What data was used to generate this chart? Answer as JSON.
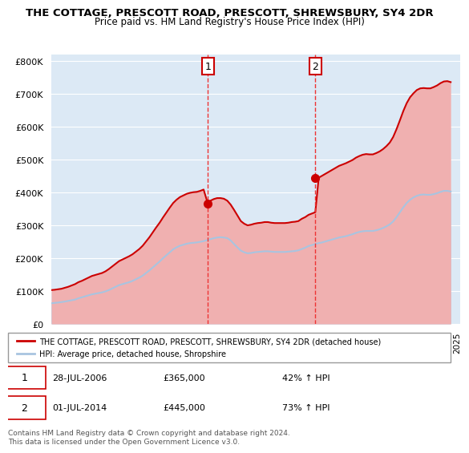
{
  "title": "THE COTTAGE, PRESCOTT ROAD, PRESCOTT, SHREWSBURY, SY4 2DR",
  "subtitle": "Price paid vs. HM Land Registry's House Price Index (HPI)",
  "ylabel_ticks": [
    "£0",
    "£100K",
    "£200K",
    "£300K",
    "£400K",
    "£500K",
    "£600K",
    "£700K",
    "£800K"
  ],
  "ytick_values": [
    0,
    100000,
    200000,
    300000,
    400000,
    500000,
    600000,
    700000,
    800000
  ],
  "ylim": [
    0,
    820000
  ],
  "background_color": "#dce9f5",
  "plot_bg": "#dce9f5",
  "line_color_hpi": "#a8c4e0",
  "line_color_property": "#cc0000",
  "sale1_year": 2006.57,
  "sale1_price": 365000,
  "sale2_year": 2014.5,
  "sale2_price": 445000,
  "vline_color": "#ee3333",
  "legend_label_property": "THE COTTAGE, PRESCOTT ROAD, PRESCOTT, SHREWSBURY, SY4 2DR (detached house)",
  "legend_label_hpi": "HPI: Average price, detached house, Shropshire",
  "annotation1_label": "1",
  "annotation2_label": "2",
  "annotation1_date": "28-JUL-2006",
  "annotation1_price": "£365,000",
  "annotation1_hpi": "42% ↑ HPI",
  "annotation2_date": "01-JUL-2014",
  "annotation2_price": "£445,000",
  "annotation2_hpi": "73% ↑ HPI",
  "footer": "Contains HM Land Registry data © Crown copyright and database right 2024.\nThis data is licensed under the Open Government Licence v3.0.",
  "hpi_years": [
    1995,
    1995.25,
    1995.5,
    1995.75,
    1996,
    1996.25,
    1996.5,
    1996.75,
    1997,
    1997.25,
    1997.5,
    1997.75,
    1998,
    1998.25,
    1998.5,
    1998.75,
    1999,
    1999.25,
    1999.5,
    1999.75,
    2000,
    2000.25,
    2000.5,
    2000.75,
    2001,
    2001.25,
    2001.5,
    2001.75,
    2002,
    2002.25,
    2002.5,
    2002.75,
    2003,
    2003.25,
    2003.5,
    2003.75,
    2004,
    2004.25,
    2004.5,
    2004.75,
    2005,
    2005.25,
    2005.5,
    2005.75,
    2006,
    2006.25,
    2006.5,
    2006.75,
    2007,
    2007.25,
    2007.5,
    2007.75,
    2008,
    2008.25,
    2008.5,
    2008.75,
    2009,
    2009.25,
    2009.5,
    2009.75,
    2010,
    2010.25,
    2010.5,
    2010.75,
    2011,
    2011.25,
    2011.5,
    2011.75,
    2012,
    2012.25,
    2012.5,
    2012.75,
    2013,
    2013.25,
    2013.5,
    2013.75,
    2014,
    2014.25,
    2014.5,
    2014.75,
    2015,
    2015.25,
    2015.5,
    2015.75,
    2016,
    2016.25,
    2016.5,
    2016.75,
    2017,
    2017.25,
    2017.5,
    2017.75,
    2018,
    2018.25,
    2018.5,
    2018.75,
    2019,
    2019.25,
    2019.5,
    2019.75,
    2020,
    2020.25,
    2020.5,
    2020.75,
    2021,
    2021.25,
    2021.5,
    2021.75,
    2022,
    2022.25,
    2022.5,
    2022.75,
    2023,
    2023.25,
    2023.5,
    2023.75,
    2024,
    2024.25,
    2024.5
  ],
  "hpi_values": [
    63000,
    64000,
    65000,
    66500,
    68000,
    70000,
    72000,
    74000,
    78000,
    81000,
    84000,
    87000,
    90000,
    92000,
    94000,
    96000,
    99000,
    103000,
    108000,
    113000,
    118000,
    121000,
    124000,
    127000,
    131000,
    136000,
    141000,
    147000,
    155000,
    163000,
    172000,
    181000,
    190000,
    200000,
    209000,
    218000,
    227000,
    233000,
    238000,
    241000,
    244000,
    246000,
    247000,
    248000,
    250000,
    252000,
    255000,
    258000,
    261000,
    263000,
    264000,
    263000,
    261000,
    254000,
    243000,
    233000,
    223000,
    218000,
    215000,
    216000,
    218000,
    219000,
    220000,
    221000,
    221000,
    220000,
    219000,
    219000,
    219000,
    219000,
    220000,
    221000,
    222000,
    224000,
    228000,
    232000,
    237000,
    240000,
    243000,
    246000,
    248000,
    251000,
    254000,
    257000,
    260000,
    263000,
    265000,
    267000,
    270000,
    273000,
    277000,
    280000,
    282000,
    283000,
    283000,
    283000,
    285000,
    288000,
    292000,
    297000,
    303000,
    312000,
    325000,
    340000,
    355000,
    368000,
    378000,
    385000,
    390000,
    393000,
    394000,
    393000,
    393000,
    395000,
    398000,
    402000,
    405000,
    405000,
    403000
  ],
  "property_years": [
    1995,
    1995.25,
    1995.5,
    1995.75,
    1996,
    1996.25,
    1996.5,
    1996.75,
    1997,
    1997.25,
    1997.5,
    1997.75,
    1998,
    1998.25,
    1998.5,
    1998.75,
    1999,
    1999.25,
    1999.5,
    1999.75,
    2000,
    2000.25,
    2000.5,
    2000.75,
    2001,
    2001.25,
    2001.5,
    2001.75,
    2002,
    2002.25,
    2002.5,
    2002.75,
    2003,
    2003.25,
    2003.5,
    2003.75,
    2004,
    2004.25,
    2004.5,
    2004.75,
    2005,
    2005.25,
    2005.5,
    2005.75,
    2006,
    2006.25,
    2006.57,
    2006.75,
    2007,
    2007.25,
    2007.5,
    2007.75,
    2008,
    2008.25,
    2008.5,
    2008.75,
    2009,
    2009.25,
    2009.5,
    2009.75,
    2010,
    2010.25,
    2010.5,
    2010.75,
    2011,
    2011.25,
    2011.5,
    2011.75,
    2012,
    2012.25,
    2012.5,
    2012.75,
    2013,
    2013.25,
    2013.5,
    2013.75,
    2014,
    2014.25,
    2014.5,
    2014.75,
    2015,
    2015.25,
    2015.5,
    2015.75,
    2016,
    2016.25,
    2016.5,
    2016.75,
    2017,
    2017.25,
    2017.5,
    2017.75,
    2018,
    2018.25,
    2018.5,
    2018.75,
    2019,
    2019.25,
    2019.5,
    2019.75,
    2020,
    2020.25,
    2020.5,
    2020.75,
    2021,
    2021.25,
    2021.5,
    2021.75,
    2022,
    2022.25,
    2022.5,
    2022.75,
    2023,
    2023.25,
    2023.5,
    2023.75,
    2024,
    2024.25,
    2024.5
  ],
  "property_values": [
    103000,
    104000,
    105500,
    107000,
    110000,
    113000,
    117000,
    121000,
    127000,
    131000,
    136000,
    141000,
    146000,
    149000,
    152000,
    155000,
    160000,
    167000,
    175000,
    183000,
    191000,
    196000,
    201000,
    206000,
    212000,
    220000,
    228000,
    238000,
    251000,
    264000,
    279000,
    294000,
    308000,
    324000,
    339000,
    354000,
    368000,
    378000,
    386000,
    391000,
    396000,
    399000,
    401000,
    402000,
    405000,
    409000,
    365000,
    375000,
    380000,
    383000,
    383000,
    381000,
    375000,
    363000,
    347000,
    330000,
    313000,
    305000,
    300000,
    302000,
    305000,
    307000,
    308000,
    310000,
    310000,
    308000,
    307000,
    307000,
    307000,
    307000,
    308000,
    310000,
    311000,
    313000,
    320000,
    325000,
    332000,
    336000,
    340000,
    445000,
    451000,
    457000,
    463000,
    469000,
    475000,
    481000,
    485000,
    489000,
    494000,
    499000,
    506000,
    511000,
    515000,
    517000,
    516000,
    516000,
    520000,
    525000,
    532000,
    541000,
    552000,
    569000,
    593000,
    620000,
    648000,
    672000,
    690000,
    702000,
    712000,
    717000,
    718000,
    717000,
    717000,
    721000,
    726000,
    733000,
    738000,
    739000,
    736000
  ]
}
